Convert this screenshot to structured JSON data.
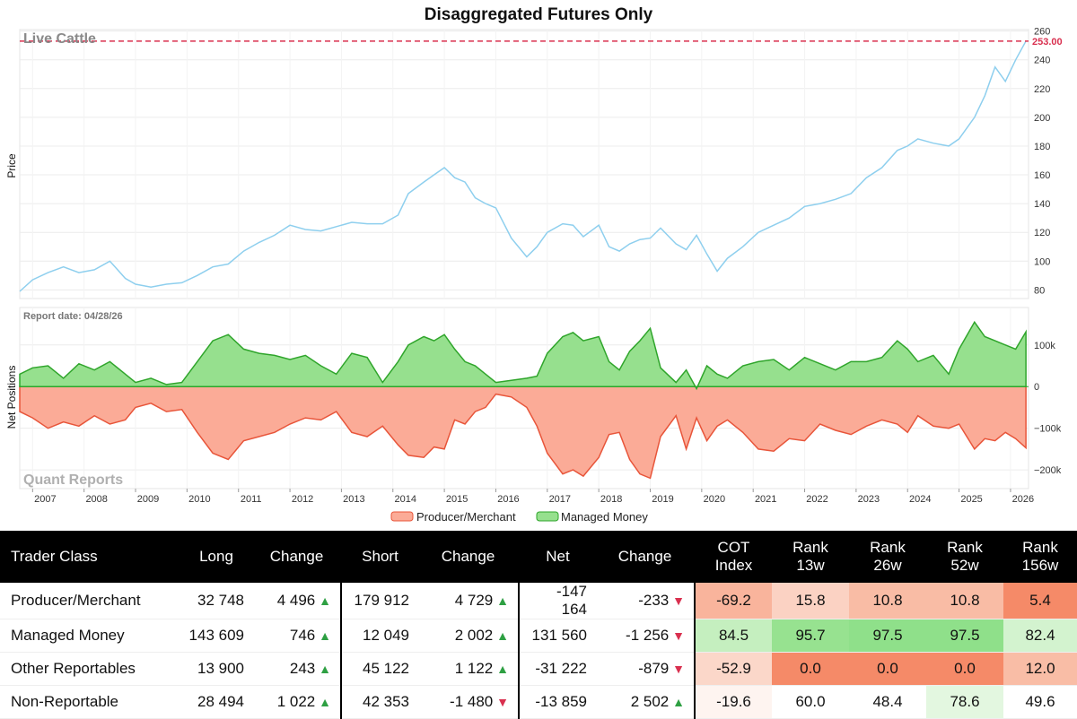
{
  "title": "Disaggregated Futures Only",
  "commodity": "Live Cattle",
  "watermark": "Quant Reports",
  "report_date": "Report date: 04/28/26",
  "legend": [
    "Producer/Merchant",
    "Managed Money"
  ],
  "colors": {
    "price": "#8ecfee",
    "producer_fill": "#fbab97",
    "producer_line": "#e8553a",
    "managed_fill": "#96e08e",
    "managed_line": "#2fa52b",
    "ref_line": "#d9304f",
    "table_red": "#f58a68",
    "table_green": "#8fe08a"
  },
  "chart_data": [
    {
      "type": "line",
      "ylabel": "Price",
      "yticks": [
        80,
        100,
        120,
        140,
        160,
        180,
        200,
        220,
        240,
        260
      ],
      "ylim": [
        74,
        261
      ],
      "xlim": [
        2006.75,
        2026.35
      ],
      "last_value_label": "253.00",
      "reference_line": 253,
      "grid": true,
      "series": [
        {
          "x": [
            2006.75,
            2007.0,
            2007.3,
            2007.6,
            2007.9,
            2008.2,
            2008.5,
            2008.8,
            2009.0,
            2009.3,
            2009.6,
            2009.9,
            2010.2,
            2010.5,
            2010.8,
            2011.1,
            2011.4,
            2011.7,
            2012.0,
            2012.3,
            2012.6,
            2012.9,
            2013.2,
            2013.5,
            2013.8,
            2014.1,
            2014.3,
            2014.6,
            2014.8,
            2015.0,
            2015.2,
            2015.4,
            2015.6,
            2015.8,
            2016.0,
            2016.3,
            2016.6,
            2016.8,
            2017.0,
            2017.3,
            2017.5,
            2017.7,
            2018.0,
            2018.2,
            2018.4,
            2018.6,
            2018.8,
            2019.0,
            2019.2,
            2019.5,
            2019.7,
            2019.9,
            2020.1,
            2020.3,
            2020.5,
            2020.8,
            2021.1,
            2021.4,
            2021.7,
            2022.0,
            2022.3,
            2022.6,
            2022.9,
            2023.2,
            2023.5,
            2023.8,
            2024.0,
            2024.2,
            2024.5,
            2024.8,
            2025.0,
            2025.3,
            2025.5,
            2025.7,
            2025.9,
            2026.1,
            2026.3
          ],
          "y": [
            79,
            87,
            92,
            96,
            92,
            94,
            100,
            88,
            84,
            82,
            84,
            85,
            90,
            96,
            98,
            107,
            113,
            118,
            125,
            122,
            121,
            124,
            127,
            126,
            126,
            132,
            147,
            155,
            160,
            165,
            158,
            155,
            144,
            140,
            137,
            116,
            103,
            110,
            120,
            126,
            125,
            117,
            125,
            110,
            107,
            112,
            115,
            116,
            123,
            112,
            108,
            118,
            105,
            93,
            102,
            110,
            120,
            125,
            130,
            138,
            140,
            143,
            147,
            158,
            165,
            177,
            180,
            185,
            182,
            180,
            185,
            200,
            215,
            235,
            225,
            240,
            253
          ]
        }
      ]
    },
    {
      "type": "area",
      "ylabel": "Net Positions",
      "yticks": [
        100000,
        0,
        -100000,
        -200000
      ],
      "ytick_labels": [
        "100k",
        "0",
        "−100k",
        "−200k"
      ],
      "ylim": [
        -245000,
        190000
      ],
      "xticks": [
        "2007",
        "2008",
        "2009",
        "2010",
        "2011",
        "2012",
        "2013",
        "2014",
        "2015",
        "2016",
        "2017",
        "2018",
        "2019",
        "2020",
        "2021",
        "2022",
        "2023",
        "2024",
        "2025",
        "2026"
      ],
      "grid": true,
      "series": [
        {
          "name": "Producer/Merchant",
          "x": [
            2006.75,
            2007.0,
            2007.3,
            2007.6,
            2007.9,
            2008.2,
            2008.5,
            2008.8,
            2009.0,
            2009.3,
            2009.6,
            2009.9,
            2010.2,
            2010.5,
            2010.8,
            2011.1,
            2011.4,
            2011.7,
            2012.0,
            2012.3,
            2012.6,
            2012.9,
            2013.2,
            2013.5,
            2013.8,
            2014.1,
            2014.3,
            2014.6,
            2014.8,
            2015.0,
            2015.2,
            2015.4,
            2015.6,
            2015.8,
            2016.0,
            2016.3,
            2016.6,
            2016.8,
            2017.0,
            2017.3,
            2017.5,
            2017.7,
            2018.0,
            2018.2,
            2018.4,
            2018.6,
            2018.8,
            2019.0,
            2019.2,
            2019.5,
            2019.7,
            2019.9,
            2020.1,
            2020.3,
            2020.5,
            2020.8,
            2021.1,
            2021.4,
            2021.7,
            2022.0,
            2022.3,
            2022.6,
            2022.9,
            2023.2,
            2023.5,
            2023.8,
            2024.0,
            2024.2,
            2024.5,
            2024.8,
            2025.0,
            2025.3,
            2025.5,
            2025.7,
            2025.9,
            2026.1,
            2026.3
          ],
          "y": [
            -60000,
            -75000,
            -100000,
            -85000,
            -95000,
            -70000,
            -90000,
            -80000,
            -50000,
            -40000,
            -60000,
            -55000,
            -110000,
            -160000,
            -175000,
            -130000,
            -120000,
            -110000,
            -90000,
            -75000,
            -80000,
            -60000,
            -110000,
            -120000,
            -95000,
            -140000,
            -165000,
            -170000,
            -145000,
            -150000,
            -80000,
            -90000,
            -60000,
            -50000,
            -18000,
            -25000,
            -50000,
            -95000,
            -160000,
            -210000,
            -200000,
            -215000,
            -170000,
            -115000,
            -110000,
            -175000,
            -210000,
            -220000,
            -120000,
            -70000,
            -150000,
            -75000,
            -130000,
            -95000,
            -80000,
            -110000,
            -150000,
            -155000,
            -125000,
            -130000,
            -90000,
            -105000,
            -115000,
            -95000,
            -80000,
            -90000,
            -110000,
            -70000,
            -95000,
            -100000,
            -90000,
            -150000,
            -125000,
            -130000,
            -110000,
            -125000,
            -147164
          ]
        },
        {
          "name": "Managed Money",
          "x": [
            2006.75,
            2007.0,
            2007.3,
            2007.6,
            2007.9,
            2008.2,
            2008.5,
            2008.8,
            2009.0,
            2009.3,
            2009.6,
            2009.9,
            2010.2,
            2010.5,
            2010.8,
            2011.1,
            2011.4,
            2011.7,
            2012.0,
            2012.3,
            2012.6,
            2012.9,
            2013.2,
            2013.5,
            2013.8,
            2014.1,
            2014.3,
            2014.6,
            2014.8,
            2015.0,
            2015.2,
            2015.4,
            2015.6,
            2015.8,
            2016.0,
            2016.3,
            2016.6,
            2016.8,
            2017.0,
            2017.3,
            2017.5,
            2017.7,
            2018.0,
            2018.2,
            2018.4,
            2018.6,
            2018.8,
            2019.0,
            2019.2,
            2019.5,
            2019.7,
            2019.9,
            2020.1,
            2020.3,
            2020.5,
            2020.8,
            2021.1,
            2021.4,
            2021.7,
            2022.0,
            2022.3,
            2022.6,
            2022.9,
            2023.2,
            2023.5,
            2023.8,
            2024.0,
            2024.2,
            2024.5,
            2024.8,
            2025.0,
            2025.3,
            2025.5,
            2025.7,
            2025.9,
            2026.1,
            2026.3
          ],
          "y": [
            30000,
            45000,
            50000,
            20000,
            55000,
            40000,
            60000,
            30000,
            10000,
            20000,
            5000,
            10000,
            60000,
            110000,
            125000,
            90000,
            80000,
            75000,
            65000,
            75000,
            50000,
            30000,
            80000,
            70000,
            10000,
            60000,
            100000,
            120000,
            110000,
            125000,
            90000,
            60000,
            50000,
            30000,
            10000,
            15000,
            20000,
            25000,
            80000,
            120000,
            130000,
            110000,
            120000,
            60000,
            40000,
            85000,
            110000,
            140000,
            45000,
            10000,
            40000,
            -5000,
            50000,
            30000,
            20000,
            50000,
            60000,
            65000,
            40000,
            70000,
            55000,
            40000,
            60000,
            60000,
            70000,
            110000,
            90000,
            60000,
            75000,
            30000,
            90000,
            155000,
            120000,
            110000,
            100000,
            90000,
            131560
          ]
        }
      ]
    }
  ],
  "table": {
    "headers": [
      "Trader Class",
      "Long",
      "Change",
      "Short",
      "Change",
      "Net",
      "Change",
      "COT\nIndex",
      "Rank\n13w",
      "Rank\n26w",
      "Rank\n52w",
      "Rank\n156w"
    ],
    "rows": [
      {
        "cls": "Producer/Merchant",
        "long": "32 748",
        "long_chg": "4 496",
        "long_dir": "up",
        "short": "179 912",
        "short_chg": "4 729",
        "short_dir": "up",
        "net": "-147 164",
        "net_chg": "-233",
        "net_dir": "down",
        "cot": "-69.2",
        "r13": "15.8",
        "r26": "10.8",
        "r52": "10.8",
        "r156": "5.4",
        "bg": [
          "#f9b49c",
          "#fbd2c3",
          "#f9bca5",
          "#f9bca5",
          "#f58a68"
        ]
      },
      {
        "cls": "Managed Money",
        "long": "143 609",
        "long_chg": "746",
        "long_dir": "up",
        "short": "12 049",
        "short_chg": "2 002",
        "short_dir": "up",
        "net": "131 560",
        "net_chg": "-1 256",
        "net_dir": "down",
        "cot": "84.5",
        "r13": "95.7",
        "r26": "97.5",
        "r52": "97.5",
        "r156": "82.4",
        "bg": [
          "#c5efbf",
          "#97e290",
          "#8fe08a",
          "#8fe08a",
          "#d3f3cf"
        ]
      },
      {
        "cls": "Other Reportables",
        "long": "13 900",
        "long_chg": "243",
        "long_dir": "up",
        "short": "45 122",
        "short_chg": "1 122",
        "short_dir": "up",
        "net": "-31 222",
        "net_chg": "-879",
        "net_dir": "down",
        "cot": "-52.9",
        "r13": "0.0",
        "r26": "0.0",
        "r52": "0.0",
        "r156": "12.0",
        "bg": [
          "#fbd7c9",
          "#f58a68",
          "#f58a68",
          "#f58a68",
          "#f9bda6"
        ]
      },
      {
        "cls": "Non-Reportable",
        "long": "28 494",
        "long_chg": "1 022",
        "long_dir": "up",
        "short": "42 353",
        "short_chg": "-1 480",
        "short_dir": "down",
        "net": "-13 859",
        "net_chg": "2 502",
        "net_dir": "up",
        "cot": "-19.6",
        "r13": "60.0",
        "r26": "48.4",
        "r52": "78.6",
        "r156": "49.6",
        "bg": [
          "#fef4f0",
          "#ffffff",
          "#ffffff",
          "#e3f7e0",
          "#ffffff"
        ]
      }
    ]
  }
}
